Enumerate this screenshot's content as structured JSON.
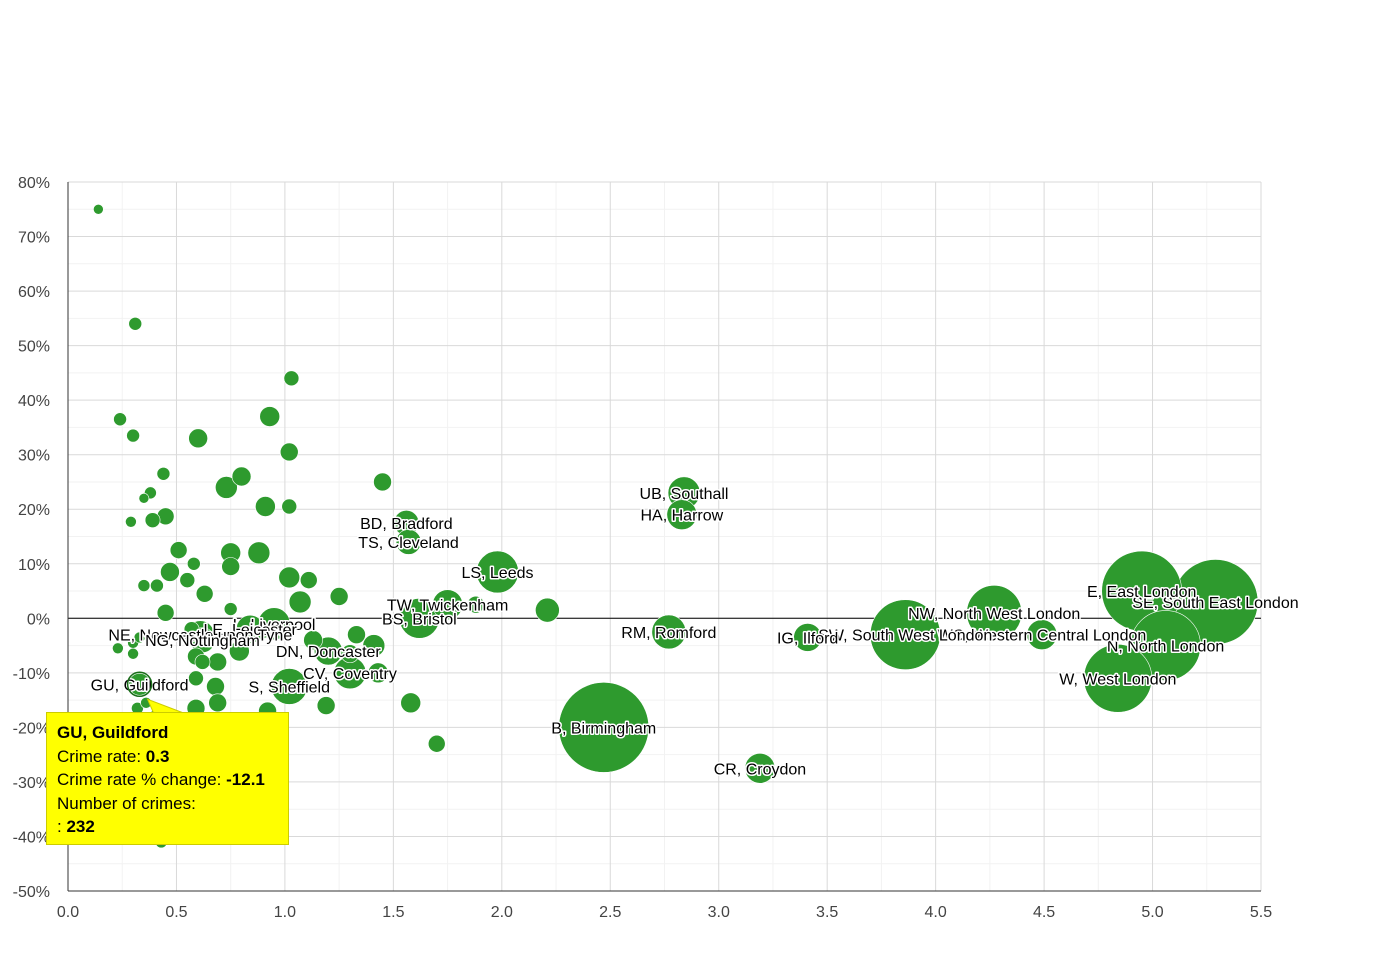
{
  "chart_data": {
    "type": "scatter",
    "subtype": "bubble",
    "title": "",
    "xlabel": "",
    "ylabel": "",
    "xlim": [
      0,
      5.5
    ],
    "ylim": [
      -50,
      80
    ],
    "x_ticks": [
      "0.0",
      "0.5",
      "1.0",
      "1.5",
      "2.0",
      "2.5",
      "3.0",
      "3.5",
      "4.0",
      "4.5",
      "5.0",
      "5.5"
    ],
    "x_tick_values": [
      0,
      0.5,
      1,
      1.5,
      2,
      2.5,
      3,
      3.5,
      4,
      4.5,
      5,
      5.5
    ],
    "y_ticks": [
      "80%",
      "70%",
      "60%",
      "50%",
      "40%",
      "30%",
      "20%",
      "10%",
      "0%",
      "-10%",
      "-20%",
      "-30%",
      "-40%",
      "-50%"
    ],
    "y_tick_values": [
      80,
      70,
      60,
      50,
      40,
      30,
      20,
      10,
      0,
      -10,
      -20,
      -30,
      -40,
      -50
    ],
    "bubble_color": "#2e9a2e",
    "highlight_color": "#ffff00",
    "labeled_points": [
      {
        "label": "SE, South East London",
        "x": 5.29,
        "y": 3,
        "size": 85
      },
      {
        "label": "E, East London",
        "x": 4.95,
        "y": 5,
        "size": 80
      },
      {
        "label": "N, North London",
        "x": 5.06,
        "y": -5,
        "size": 70
      },
      {
        "label": "W, West London",
        "x": 4.84,
        "y": -11,
        "size": 68
      },
      {
        "label": "NW, North West London",
        "x": 4.27,
        "y": 1,
        "size": 55
      },
      {
        "label": "WC, Western Central London",
        "x": 4.49,
        "y": -3,
        "size": 30
      },
      {
        "label": "SW, South West London",
        "x": 3.86,
        "y": -3,
        "size": 70
      },
      {
        "label": "IG, Ilford",
        "x": 3.41,
        "y": -3.5,
        "size": 28
      },
      {
        "label": "CR, Croydon",
        "x": 3.19,
        "y": -27.5,
        "size": 30
      },
      {
        "label": "B, Birmingham",
        "x": 2.47,
        "y": -20,
        "size": 90
      },
      {
        "label": "RM, Romford",
        "x": 2.77,
        "y": -2.5,
        "size": 34
      },
      {
        "label": "UB, Southall",
        "x": 2.84,
        "y": 23,
        "size": 32
      },
      {
        "label": "HA, Harrow",
        "x": 2.83,
        "y": 19,
        "size": 30
      },
      {
        "label": "LS, Leeds",
        "x": 1.98,
        "y": 8.5,
        "size": 42
      },
      {
        "label": "TW, Twickenham",
        "x": 1.75,
        "y": 2.5,
        "size": 30
      },
      {
        "label": "BS, Bristol",
        "x": 1.62,
        "y": 0,
        "size": 40
      },
      {
        "label": "BD, Bradford",
        "x": 1.56,
        "y": 17.5,
        "size": 25
      },
      {
        "label": "TS, Cleveland",
        "x": 1.57,
        "y": 14,
        "size": 25
      },
      {
        "label": "L, Liverpool",
        "x": 0.95,
        "y": -1,
        "size": 32
      },
      {
        "label": "LE, Leicester",
        "x": 0.84,
        "y": -2,
        "size": 28
      },
      {
        "label": "NE, Newcastle upon Tyne",
        "x": 0.61,
        "y": -3,
        "size": 28
      },
      {
        "label": "NG, Nottingham",
        "x": 0.62,
        "y": -4,
        "size": 25
      },
      {
        "label": "DN, Doncaster",
        "x": 1.2,
        "y": -6,
        "size": 28
      },
      {
        "label": "CV, Coventry",
        "x": 1.3,
        "y": -10,
        "size": 32
      },
      {
        "label": "S, Sheffield",
        "x": 1.02,
        "y": -12.5,
        "size": 36
      },
      {
        "label": "GU, Guildford",
        "x": 0.33,
        "y": -12.1,
        "size": 22
      }
    ],
    "unlabeled_points": [
      {
        "x": 0.14,
        "y": 75,
        "size": 10
      },
      {
        "x": 0.31,
        "y": 54,
        "size": 13
      },
      {
        "x": 0.24,
        "y": 36.5,
        "size": 13
      },
      {
        "x": 0.3,
        "y": 33.5,
        "size": 13
      },
      {
        "x": 0.6,
        "y": 33,
        "size": 19
      },
      {
        "x": 0.93,
        "y": 37,
        "size": 20
      },
      {
        "x": 1.03,
        "y": 44,
        "size": 15
      },
      {
        "x": 1.02,
        "y": 30.5,
        "size": 18
      },
      {
        "x": 0.44,
        "y": 26.5,
        "size": 13
      },
      {
        "x": 0.8,
        "y": 26,
        "size": 19
      },
      {
        "x": 0.73,
        "y": 24,
        "size": 22
      },
      {
        "x": 1.45,
        "y": 25,
        "size": 18
      },
      {
        "x": 0.38,
        "y": 23,
        "size": 12
      },
      {
        "x": 0.35,
        "y": 22,
        "size": 10
      },
      {
        "x": 0.91,
        "y": 20.5,
        "size": 20
      },
      {
        "x": 1.02,
        "y": 20.5,
        "size": 15
      },
      {
        "x": 0.45,
        "y": 18.7,
        "size": 17
      },
      {
        "x": 0.39,
        "y": 18,
        "size": 15
      },
      {
        "x": 0.29,
        "y": 17.7,
        "size": 11
      },
      {
        "x": 0.51,
        "y": 12.5,
        "size": 17
      },
      {
        "x": 0.75,
        "y": 12,
        "size": 20
      },
      {
        "x": 0.88,
        "y": 12,
        "size": 22
      },
      {
        "x": 0.58,
        "y": 10,
        "size": 13
      },
      {
        "x": 0.75,
        "y": 9.5,
        "size": 18
      },
      {
        "x": 0.47,
        "y": 8.5,
        "size": 19
      },
      {
        "x": 1.02,
        "y": 7.5,
        "size": 21
      },
      {
        "x": 1.11,
        "y": 7,
        "size": 17
      },
      {
        "x": 0.55,
        "y": 7,
        "size": 15
      },
      {
        "x": 0.35,
        "y": 6,
        "size": 12
      },
      {
        "x": 0.41,
        "y": 6,
        "size": 13
      },
      {
        "x": 0.63,
        "y": 4.5,
        "size": 17
      },
      {
        "x": 1.07,
        "y": 3,
        "size": 22
      },
      {
        "x": 1.25,
        "y": 4,
        "size": 18
      },
      {
        "x": 2.21,
        "y": 1.5,
        "size": 24
      },
      {
        "x": 1.88,
        "y": 2.5,
        "size": 17
      },
      {
        "x": 0.45,
        "y": 1,
        "size": 17
      },
      {
        "x": 0.75,
        "y": 1.7,
        "size": 13
      },
      {
        "x": 1.41,
        "y": -5,
        "size": 22
      },
      {
        "x": 1.33,
        "y": -3,
        "size": 18
      },
      {
        "x": 1.13,
        "y": -4,
        "size": 19
      },
      {
        "x": 1.3,
        "y": -6.5,
        "size": 18
      },
      {
        "x": 1.43,
        "y": -10,
        "size": 20
      },
      {
        "x": 0.79,
        "y": -6,
        "size": 20
      },
      {
        "x": 0.69,
        "y": -8,
        "size": 18
      },
      {
        "x": 0.59,
        "y": -7,
        "size": 17
      },
      {
        "x": 0.62,
        "y": -8,
        "size": 15
      },
      {
        "x": 0.59,
        "y": -11,
        "size": 15
      },
      {
        "x": 0.68,
        "y": -12.5,
        "size": 18
      },
      {
        "x": 0.69,
        "y": -15.5,
        "size": 18
      },
      {
        "x": 0.59,
        "y": -16.5,
        "size": 18
      },
      {
        "x": 0.92,
        "y": -17,
        "size": 18
      },
      {
        "x": 1.19,
        "y": -16,
        "size": 18
      },
      {
        "x": 1.58,
        "y": -15.5,
        "size": 20
      },
      {
        "x": 1.7,
        "y": -23,
        "size": 17
      },
      {
        "x": 0.23,
        "y": -5.5,
        "size": 11
      },
      {
        "x": 0.3,
        "y": -4.5,
        "size": 11
      },
      {
        "x": 0.33,
        "y": -3.5,
        "size": 11
      },
      {
        "x": 0.3,
        "y": -6.5,
        "size": 11
      },
      {
        "x": 0.32,
        "y": -16.5,
        "size": 12
      },
      {
        "x": 0.36,
        "y": -15.5,
        "size": 11
      },
      {
        "x": 0.41,
        "y": -17.5,
        "size": 12
      },
      {
        "x": 0.43,
        "y": -41,
        "size": 12
      },
      {
        "x": 0.57,
        "y": -2,
        "size": 15
      },
      {
        "x": 0.89,
        "y": -2.5,
        "size": 15
      }
    ]
  },
  "tooltip": {
    "name": "GU, Guildford",
    "rate_label": "Crime rate: ",
    "rate_value": "0.3",
    "change_label": "Crime rate % change: ",
    "change_value": "-12.1",
    "crimes_label": "Number of crimes:",
    "crimes_prefix": ": ",
    "crimes_value": "232"
  }
}
